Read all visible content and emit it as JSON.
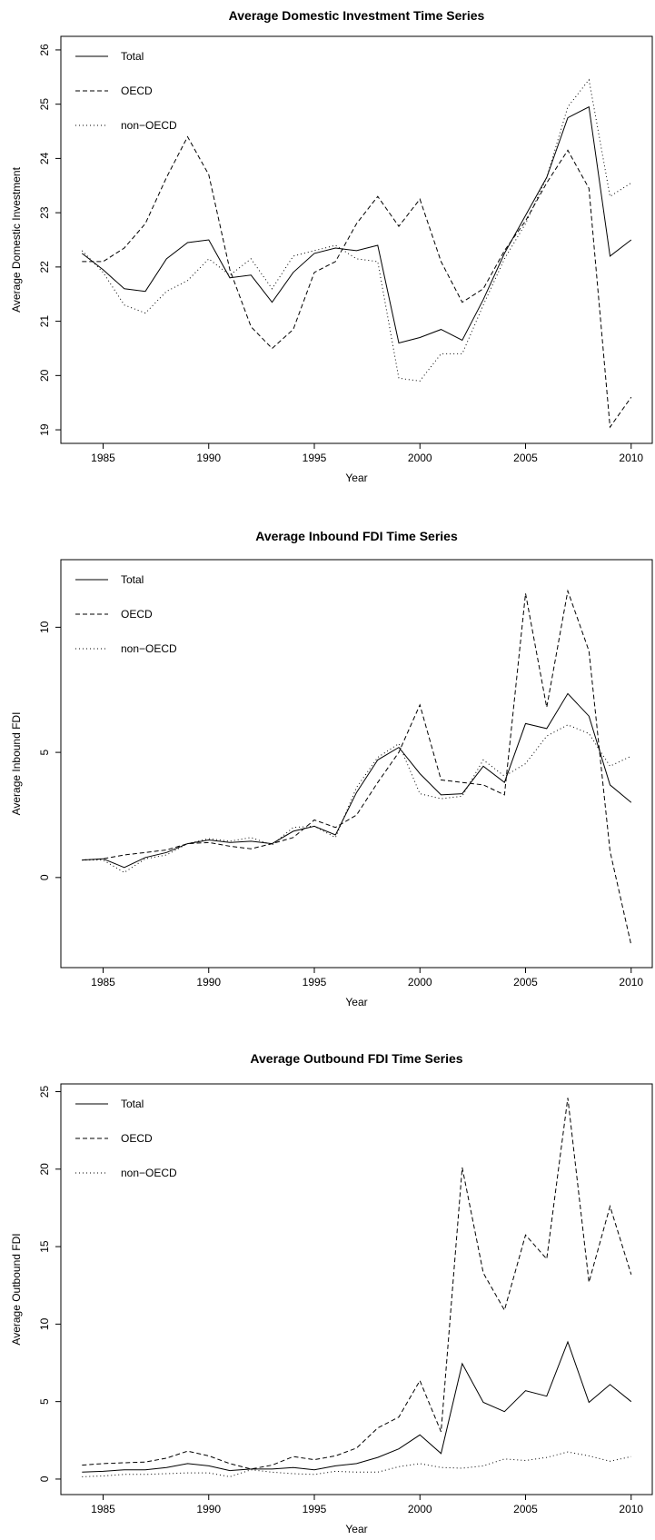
{
  "chart_data": [
    {
      "type": "line",
      "title": "Average Domestic Investment Time Series",
      "xlabel": "Year",
      "ylabel": "Average Domestic Investment",
      "xlim": [
        1983.0,
        2011.0
      ],
      "ylim": [
        18.75,
        26.25
      ],
      "xticks": [
        1985,
        1990,
        1995,
        2000,
        2005,
        2010
      ],
      "yticks": [
        19,
        20,
        21,
        22,
        23,
        24,
        25,
        26
      ],
      "legend_position": "top-left",
      "x": [
        1984,
        1985,
        1986,
        1987,
        1988,
        1989,
        1990,
        1991,
        1992,
        1993,
        1994,
        1995,
        1996,
        1997,
        1998,
        1999,
        2000,
        2001,
        2002,
        2003,
        2004,
        2005,
        2006,
        2007,
        2008,
        2009,
        2010
      ],
      "series": [
        {
          "name": "Total",
          "style": "solid",
          "values": [
            22.25,
            21.95,
            21.6,
            21.55,
            22.15,
            22.45,
            22.5,
            21.8,
            21.85,
            21.35,
            21.9,
            22.25,
            22.35,
            22.3,
            22.4,
            20.6,
            20.7,
            20.85,
            20.65,
            21.4,
            22.25,
            22.95,
            23.65,
            24.75,
            24.95,
            22.2,
            22.5
          ]
        },
        {
          "name": "OECD",
          "style": "dashed",
          "values": [
            22.1,
            22.1,
            22.35,
            22.8,
            23.65,
            24.4,
            23.7,
            21.95,
            20.9,
            20.5,
            20.85,
            21.9,
            22.1,
            22.8,
            23.3,
            22.75,
            23.25,
            22.1,
            21.35,
            21.6,
            22.3,
            22.85,
            23.55,
            24.15,
            23.45,
            19.05,
            19.6
          ]
        },
        {
          "name": "non−OECD",
          "style": "dotted",
          "values": [
            22.3,
            21.9,
            21.3,
            21.15,
            21.55,
            21.75,
            22.15,
            21.85,
            22.15,
            21.6,
            22.2,
            22.3,
            22.4,
            22.15,
            22.1,
            19.95,
            19.9,
            20.4,
            20.4,
            21.3,
            22.15,
            22.8,
            23.65,
            24.95,
            25.45,
            23.3,
            23.55
          ]
        }
      ]
    },
    {
      "type": "line",
      "title": "Average Inbound FDI Time Series",
      "xlabel": "Year",
      "ylabel": "Average Inbound FDI",
      "xlim": [
        1983.0,
        2011.0
      ],
      "ylim": [
        -3.6,
        12.7
      ],
      "xticks": [
        1985,
        1990,
        1995,
        2000,
        2005,
        2010
      ],
      "yticks": [
        0,
        5,
        10
      ],
      "legend_position": "top-left",
      "x": [
        1984,
        1985,
        1986,
        1987,
        1988,
        1989,
        1990,
        1991,
        1992,
        1993,
        1994,
        1995,
        1996,
        1997,
        1998,
        1999,
        2000,
        2001,
        2002,
        2003,
        2004,
        2005,
        2006,
        2007,
        2008,
        2009,
        2010
      ],
      "series": [
        {
          "name": "Total",
          "style": "solid",
          "values": [
            0.7,
            0.75,
            0.4,
            0.8,
            1.0,
            1.35,
            1.5,
            1.4,
            1.45,
            1.35,
            1.85,
            2.05,
            1.7,
            3.4,
            4.7,
            5.2,
            4.15,
            3.3,
            3.35,
            4.45,
            3.8,
            6.15,
            5.95,
            7.35,
            6.45,
            3.7,
            3.0
          ]
        },
        {
          "name": "OECD",
          "style": "dashed",
          "values": [
            0.7,
            0.75,
            0.9,
            1.0,
            1.1,
            1.35,
            1.4,
            1.25,
            1.15,
            1.35,
            1.6,
            2.3,
            2.0,
            2.5,
            3.8,
            5.0,
            6.9,
            3.9,
            3.8,
            3.7,
            3.3,
            11.35,
            6.8,
            11.45,
            9.05,
            1.05,
            -2.7
          ]
        },
        {
          "name": "non−OECD",
          "style": "dotted",
          "values": [
            0.7,
            0.7,
            0.2,
            0.75,
            0.9,
            1.35,
            1.55,
            1.45,
            1.6,
            1.3,
            2.0,
            2.05,
            1.6,
            3.6,
            4.8,
            5.35,
            3.35,
            3.15,
            3.25,
            4.7,
            4.05,
            4.55,
            5.65,
            6.1,
            5.75,
            4.45,
            4.85
          ]
        }
      ]
    },
    {
      "type": "line",
      "title": "Average Outbound FDI Time Series",
      "xlabel": "Year",
      "ylabel": "Average Outbound FDI",
      "xlim": [
        1983.0,
        2011.0
      ],
      "ylim": [
        -1.0,
        25.5
      ],
      "xticks": [
        1985,
        1990,
        1995,
        2000,
        2005,
        2010
      ],
      "yticks": [
        0,
        5,
        10,
        15,
        20,
        25
      ],
      "legend_position": "top-left",
      "x": [
        1984,
        1985,
        1986,
        1987,
        1988,
        1989,
        1990,
        1991,
        1992,
        1993,
        1994,
        1995,
        1996,
        1997,
        1998,
        1999,
        2000,
        2001,
        2002,
        2003,
        2004,
        2005,
        2006,
        2007,
        2008,
        2009,
        2010
      ],
      "series": [
        {
          "name": "Total",
          "style": "solid",
          "values": [
            0.45,
            0.5,
            0.6,
            0.6,
            0.75,
            1.0,
            0.85,
            0.55,
            0.65,
            0.65,
            0.75,
            0.6,
            0.85,
            1.0,
            1.4,
            1.95,
            2.85,
            1.65,
            7.45,
            4.95,
            4.35,
            5.7,
            5.35,
            8.85,
            4.95,
            6.1,
            5.0
          ]
        },
        {
          "name": "OECD",
          "style": "dashed",
          "values": [
            0.9,
            1.0,
            1.05,
            1.1,
            1.35,
            1.8,
            1.5,
            1.0,
            0.65,
            0.9,
            1.45,
            1.25,
            1.5,
            2.0,
            3.3,
            4.0,
            6.35,
            3.05,
            20.1,
            13.3,
            10.9,
            15.75,
            14.2,
            24.6,
            12.7,
            17.6,
            13.2
          ]
        },
        {
          "name": "non−OECD",
          "style": "dotted",
          "values": [
            0.15,
            0.2,
            0.3,
            0.3,
            0.35,
            0.4,
            0.4,
            0.15,
            0.6,
            0.45,
            0.35,
            0.3,
            0.5,
            0.45,
            0.45,
            0.8,
            1.0,
            0.75,
            0.7,
            0.85,
            1.3,
            1.2,
            1.4,
            1.75,
            1.5,
            1.15,
            1.45
          ]
        }
      ]
    }
  ]
}
